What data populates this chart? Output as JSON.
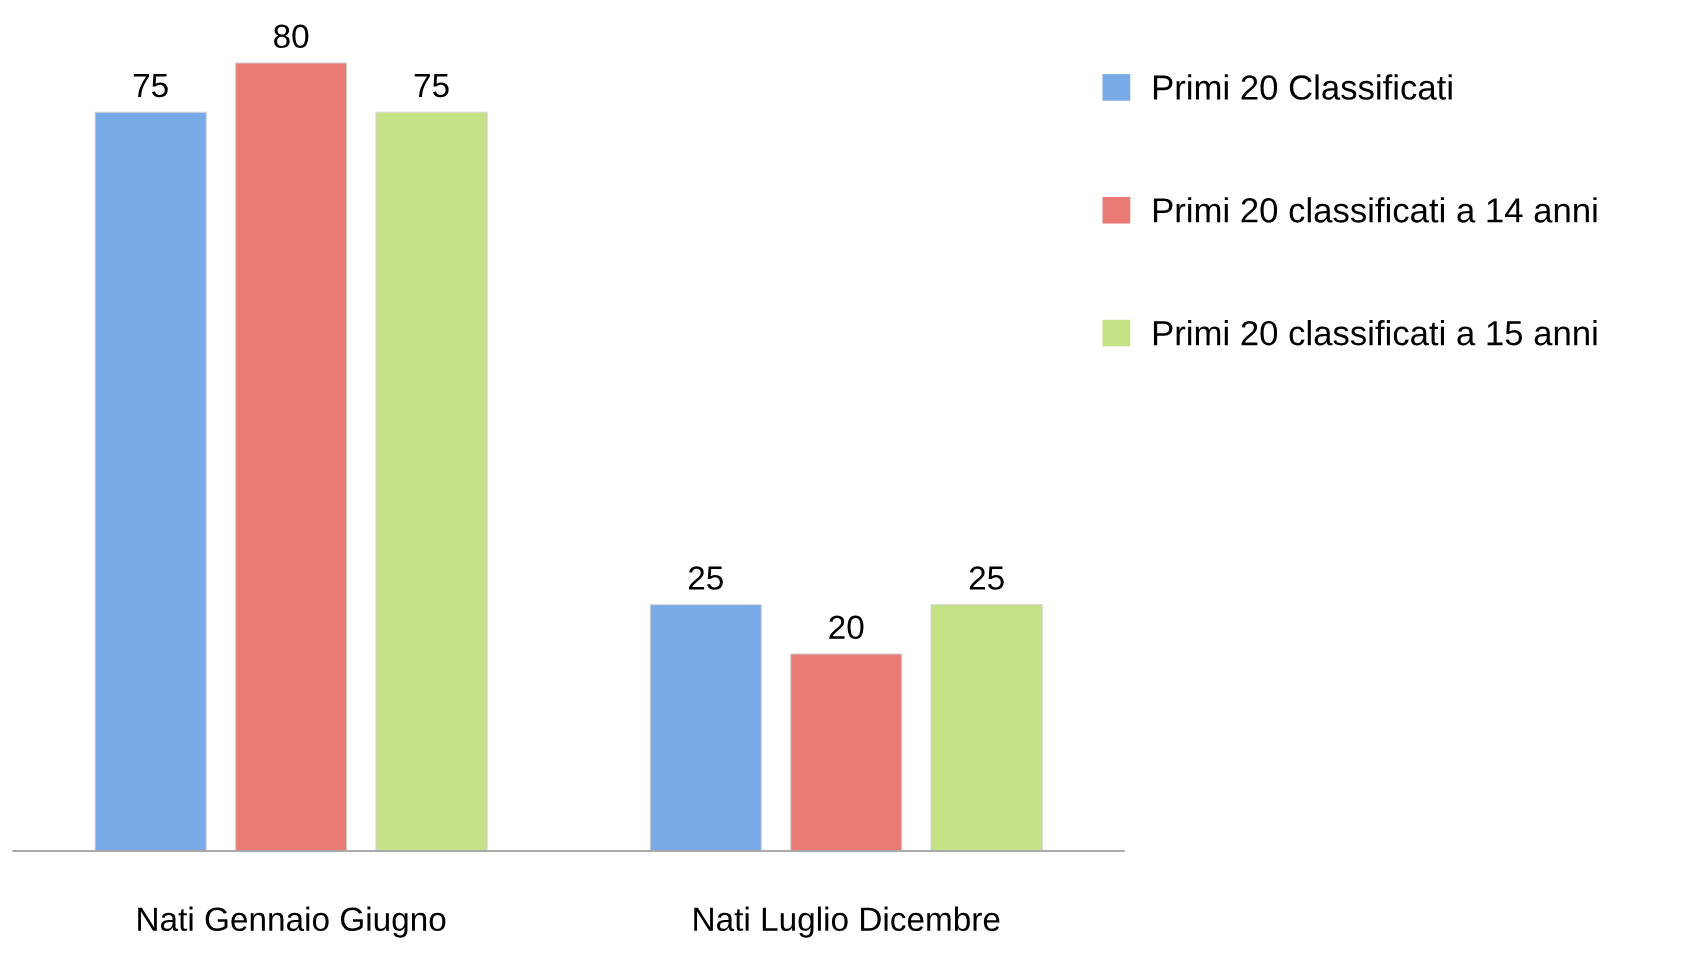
{
  "chart_data": {
    "type": "bar",
    "categories": [
      "Nati Gennaio Giugno",
      "Nati Luglio Dicembre"
    ],
    "series": [
      {
        "name": "Primi 20 Classificati",
        "color": "#78aae8",
        "values": [
          75,
          25
        ]
      },
      {
        "name": "Primi 20 classificati a 14 anni",
        "color": "#ea7b74",
        "values": [
          80,
          20
        ]
      },
      {
        "name": "Primi 20 classificati a 15 anni",
        "color": "#c6e286",
        "values": [
          75,
          25
        ]
      }
    ],
    "data_labels": true,
    "legend": "right",
    "grid": false
  }
}
